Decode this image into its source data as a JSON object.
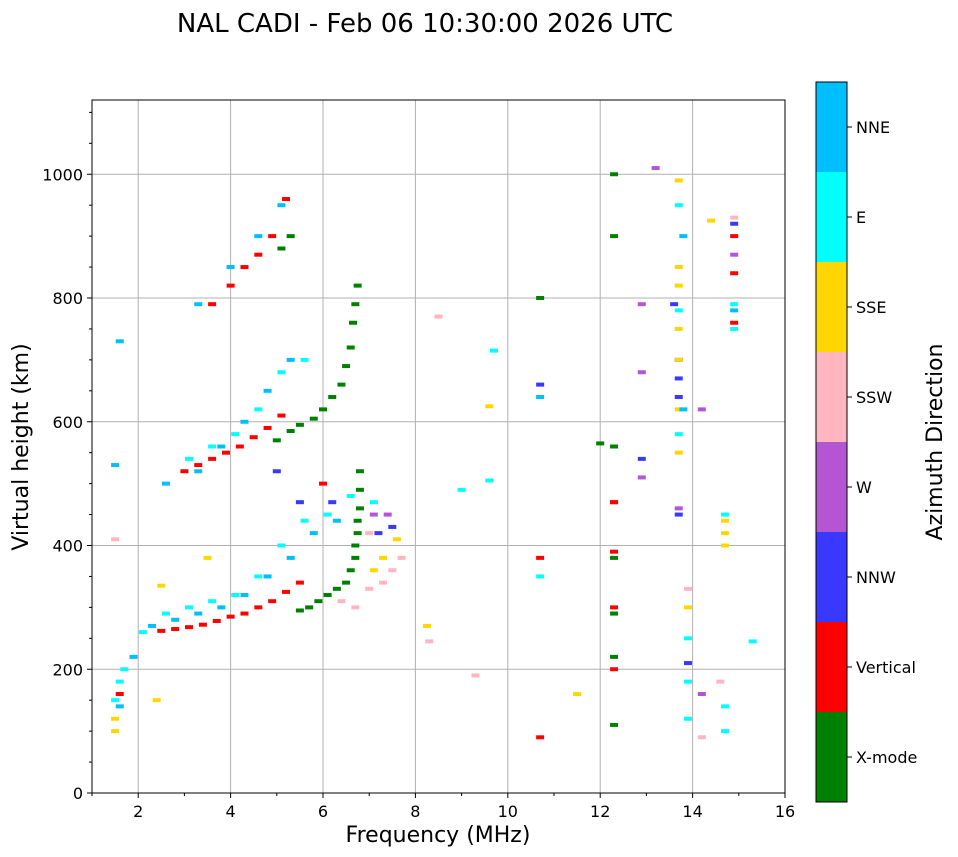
{
  "chart_data": {
    "type": "scatter",
    "title": "NAL CADI - Feb 06 10:30:00 2026 UTC",
    "xlabel": "Frequency (MHz)",
    "ylabel": "Virtual height (km)",
    "xlim": [
      1,
      16
    ],
    "ylim": [
      0,
      1120
    ],
    "x_ticks": [
      2,
      4,
      6,
      8,
      10,
      12,
      14,
      16
    ],
    "y_ticks": [
      0,
      200,
      400,
      600,
      800,
      1000
    ],
    "grid": true,
    "colorbar": {
      "title": "Azimuth Direction",
      "categories": [
        {
          "name": "X-mode",
          "color": "#008000"
        },
        {
          "name": "Vertical",
          "color": "#ff0000"
        },
        {
          "name": "NNW",
          "color": "#3838ff"
        },
        {
          "name": "W",
          "color": "#b455d4"
        },
        {
          "name": "SSW",
          "color": "#ffb6c1"
        },
        {
          "name": "SSE",
          "color": "#ffd700"
        },
        {
          "name": "E",
          "color": "#00ffff"
        },
        {
          "name": "NNE",
          "color": "#00bfff"
        }
      ]
    },
    "series": [
      {
        "name": "X-mode",
        "points": [
          [
            5.5,
            295
          ],
          [
            5.7,
            300
          ],
          [
            5.9,
            310
          ],
          [
            6.1,
            320
          ],
          [
            6.3,
            330
          ],
          [
            6.5,
            340
          ],
          [
            6.6,
            360
          ],
          [
            6.7,
            380
          ],
          [
            6.7,
            400
          ],
          [
            6.75,
            420
          ],
          [
            6.75,
            440
          ],
          [
            6.8,
            460
          ],
          [
            6.8,
            490
          ],
          [
            6.8,
            520
          ],
          [
            5.0,
            570
          ],
          [
            5.3,
            585
          ],
          [
            5.5,
            595
          ],
          [
            5.8,
            605
          ],
          [
            6.0,
            620
          ],
          [
            6.2,
            640
          ],
          [
            6.4,
            660
          ],
          [
            6.5,
            690
          ],
          [
            6.6,
            720
          ],
          [
            6.65,
            760
          ],
          [
            6.7,
            790
          ],
          [
            6.75,
            820
          ],
          [
            5.1,
            880
          ],
          [
            5.3,
            900
          ],
          [
            10.7,
            800
          ],
          [
            12.3,
            110
          ],
          [
            12.3,
            220
          ],
          [
            12.3,
            290
          ],
          [
            12.3,
            380
          ],
          [
            12.3,
            470
          ],
          [
            12.3,
            560
          ],
          [
            12.3,
            900
          ],
          [
            12.3,
            1000
          ],
          [
            12.0,
            565
          ]
        ]
      },
      {
        "name": "Vertical",
        "points": [
          [
            2.5,
            262
          ],
          [
            2.8,
            265
          ],
          [
            3.1,
            268
          ],
          [
            3.4,
            272
          ],
          [
            3.7,
            278
          ],
          [
            4.0,
            285
          ],
          [
            4.3,
            290
          ],
          [
            4.6,
            300
          ],
          [
            4.9,
            310
          ],
          [
            5.2,
            325
          ],
          [
            5.5,
            340
          ],
          [
            6.0,
            500
          ],
          [
            3.0,
            520
          ],
          [
            3.3,
            530
          ],
          [
            3.6,
            540
          ],
          [
            3.9,
            550
          ],
          [
            4.2,
            560
          ],
          [
            4.5,
            575
          ],
          [
            4.8,
            590
          ],
          [
            5.1,
            610
          ],
          [
            3.6,
            790
          ],
          [
            4.0,
            820
          ],
          [
            4.3,
            850
          ],
          [
            4.6,
            870
          ],
          [
            4.9,
            900
          ],
          [
            5.2,
            960
          ],
          [
            1.6,
            160
          ],
          [
            10.7,
            90
          ],
          [
            10.7,
            380
          ],
          [
            12.3,
            200
          ],
          [
            12.3,
            300
          ],
          [
            12.3,
            390
          ],
          [
            12.3,
            470
          ],
          [
            14.9,
            760
          ],
          [
            14.9,
            840
          ],
          [
            14.9,
            900
          ]
        ]
      },
      {
        "name": "NNW",
        "points": [
          [
            5.0,
            520
          ],
          [
            5.5,
            470
          ],
          [
            6.2,
            470
          ],
          [
            7.2,
            420
          ],
          [
            7.5,
            430
          ],
          [
            10.7,
            660
          ],
          [
            12.9,
            540
          ],
          [
            13.7,
            700
          ],
          [
            13.7,
            670
          ],
          [
            13.7,
            640
          ],
          [
            13.7,
            450
          ],
          [
            13.6,
            790
          ],
          [
            13.9,
            210
          ],
          [
            14.9,
            920
          ]
        ]
      },
      {
        "name": "W",
        "points": [
          [
            7.1,
            450
          ],
          [
            7.4,
            450
          ],
          [
            13.2,
            1010
          ],
          [
            12.9,
            510
          ],
          [
            12.9,
            790
          ],
          [
            12.9,
            680
          ],
          [
            14.2,
            620
          ],
          [
            14.2,
            160
          ],
          [
            13.7,
            460
          ],
          [
            14.9,
            870
          ]
        ]
      },
      {
        "name": "SSW",
        "points": [
          [
            1.5,
            410
          ],
          [
            6.4,
            310
          ],
          [
            6.7,
            300
          ],
          [
            7.0,
            330
          ],
          [
            7.3,
            340
          ],
          [
            7.5,
            360
          ],
          [
            7.7,
            380
          ],
          [
            7.0,
            420
          ],
          [
            8.3,
            245
          ],
          [
            8.5,
            770
          ],
          [
            9.3,
            190
          ],
          [
            14.2,
            90
          ],
          [
            14.6,
            180
          ],
          [
            13.9,
            330
          ],
          [
            14.9,
            930
          ]
        ]
      },
      {
        "name": "SSE",
        "points": [
          [
            1.5,
            100
          ],
          [
            1.5,
            120
          ],
          [
            2.4,
            150
          ],
          [
            2.5,
            335
          ],
          [
            3.5,
            380
          ],
          [
            7.1,
            360
          ],
          [
            7.3,
            380
          ],
          [
            7.6,
            410
          ],
          [
            8.25,
            270
          ],
          [
            9.6,
            625
          ],
          [
            11.5,
            160
          ],
          [
            13.7,
            550
          ],
          [
            13.7,
            620
          ],
          [
            13.7,
            700
          ],
          [
            13.7,
            750
          ],
          [
            13.7,
            820
          ],
          [
            13.7,
            850
          ],
          [
            13.7,
            990
          ],
          [
            14.4,
            925
          ],
          [
            14.7,
            400
          ],
          [
            14.7,
            420
          ],
          [
            14.7,
            440
          ],
          [
            13.9,
            300
          ]
        ]
      },
      {
        "name": "E",
        "points": [
          [
            1.5,
            150
          ],
          [
            1.6,
            180
          ],
          [
            1.7,
            200
          ],
          [
            2.1,
            260
          ],
          [
            2.6,
            290
          ],
          [
            3.1,
            300
          ],
          [
            3.6,
            310
          ],
          [
            4.1,
            320
          ],
          [
            4.6,
            350
          ],
          [
            5.1,
            400
          ],
          [
            5.6,
            440
          ],
          [
            6.1,
            450
          ],
          [
            6.6,
            480
          ],
          [
            7.1,
            470
          ],
          [
            3.1,
            540
          ],
          [
            3.6,
            560
          ],
          [
            4.1,
            580
          ],
          [
            4.6,
            620
          ],
          [
            5.1,
            680
          ],
          [
            5.6,
            700
          ],
          [
            9.0,
            490
          ],
          [
            9.6,
            505
          ],
          [
            9.7,
            715
          ],
          [
            10.7,
            350
          ],
          [
            13.7,
            950
          ],
          [
            13.7,
            780
          ],
          [
            13.7,
            580
          ],
          [
            13.9,
            120
          ],
          [
            13.9,
            180
          ],
          [
            13.9,
            250
          ],
          [
            14.7,
            100
          ],
          [
            14.7,
            140
          ],
          [
            14.7,
            450
          ],
          [
            14.9,
            750
          ],
          [
            14.9,
            790
          ],
          [
            15.3,
            245
          ]
        ]
      },
      {
        "name": "NNE",
        "points": [
          [
            1.6,
            140
          ],
          [
            1.9,
            220
          ],
          [
            2.3,
            270
          ],
          [
            2.8,
            280
          ],
          [
            3.3,
            290
          ],
          [
            3.8,
            300
          ],
          [
            4.3,
            320
          ],
          [
            4.8,
            350
          ],
          [
            5.3,
            380
          ],
          [
            5.8,
            420
          ],
          [
            6.3,
            440
          ],
          [
            2.6,
            500
          ],
          [
            3.3,
            520
          ],
          [
            3.8,
            560
          ],
          [
            4.3,
            600
          ],
          [
            4.8,
            650
          ],
          [
            5.3,
            700
          ],
          [
            3.3,
            790
          ],
          [
            4.0,
            850
          ],
          [
            4.6,
            900
          ],
          [
            5.1,
            950
          ],
          [
            1.6,
            730
          ],
          [
            1.5,
            530
          ],
          [
            10.7,
            640
          ],
          [
            13.8,
            620
          ],
          [
            13.8,
            900
          ],
          [
            14.9,
            780
          ]
        ]
      }
    ]
  }
}
